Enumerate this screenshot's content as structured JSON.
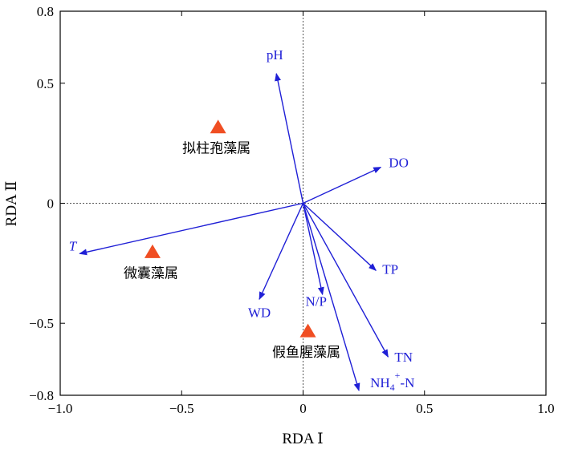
{
  "chart_data": {
    "type": "scatter",
    "subtype": "rda-biplot",
    "xlabel": "RDA Ⅰ",
    "ylabel": "RDA Ⅱ",
    "xlim": [
      -1.0,
      1.0
    ],
    "ylim": [
      -0.8,
      0.8
    ],
    "x_ticks": [
      {
        "value": -1.0,
        "label": "−1.0"
      },
      {
        "value": -0.5,
        "label": "−0.5"
      },
      {
        "value": 0,
        "label": "0"
      },
      {
        "value": 0.5,
        "label": "0.5"
      },
      {
        "value": 1.0,
        "label": "1.0"
      }
    ],
    "y_ticks": [
      {
        "value": 0.8,
        "label": "0.8"
      },
      {
        "value": 0.5,
        "label": "0.5"
      },
      {
        "value": 0,
        "label": "0"
      },
      {
        "value": -0.5,
        "label": "−0.5"
      },
      {
        "value": -0.8,
        "label": "−0.8"
      }
    ],
    "zero_lines": true,
    "grid": false,
    "vector_color": "#1f1fd6",
    "site_color": "#f04e23",
    "vectors": [
      {
        "name": "pH",
        "x": -0.11,
        "y": 0.54,
        "italic": false
      },
      {
        "name": "DO",
        "x": 0.32,
        "y": 0.15,
        "italic": false
      },
      {
        "name": "T",
        "x": -0.92,
        "y": -0.21,
        "italic": true
      },
      {
        "name": "TP",
        "x": 0.3,
        "y": -0.28,
        "italic": false
      },
      {
        "name": "TN",
        "x": 0.35,
        "y": -0.64,
        "italic": false
      },
      {
        "name": "NH4+-N",
        "x": 0.23,
        "y": -0.78,
        "italic": false
      },
      {
        "name": "N/P",
        "x": 0.08,
        "y": -0.38,
        "italic": false
      },
      {
        "name": "WD",
        "x": -0.18,
        "y": -0.4,
        "italic": false
      }
    ],
    "sites": [
      {
        "name": "拟柱孢藻属",
        "x": -0.35,
        "y": 0.32
      },
      {
        "name": "微囊藻属",
        "x": -0.62,
        "y": -0.2
      },
      {
        "name": "假鱼腥藻属",
        "x": 0.02,
        "y": -0.53
      }
    ]
  }
}
